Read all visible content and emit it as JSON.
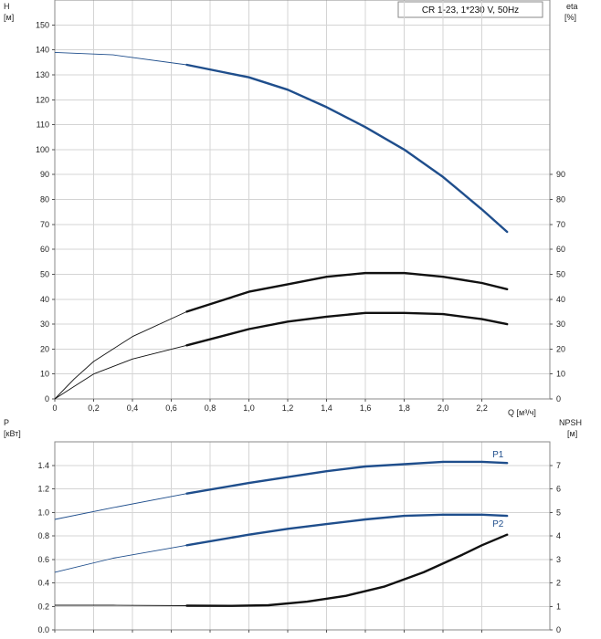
{
  "title": "CR 1-23, 1*230 V, 50Hz",
  "colors": {
    "blue": "#1f4e8c",
    "black": "#111111",
    "grid": "#d4d4d4"
  },
  "top_axes": {
    "left_label_line1": "H",
    "left_label_line2": "[м]",
    "right_label_line1": "eta",
    "right_label_line2": "[%]",
    "x_label": "Q [м³/ч]"
  },
  "bottom_axes": {
    "left_label_line1": "P",
    "left_label_line2": "[кВт]",
    "right_label_line1": "NPSH",
    "right_label_line2": "[м]"
  },
  "chart_data": [
    {
      "type": "line",
      "panel": "top",
      "xlabel": "Q [м³/ч]",
      "ylabel": "H [м]",
      "y2label": "eta [%]",
      "xlim": [
        0,
        2.55
      ],
      "ylim": [
        0,
        160
      ],
      "y2lim": [
        0,
        160
      ],
      "x_ticks": [
        "0",
        "0,2",
        "0,4",
        "0,6",
        "0,8",
        "1,0",
        "1,2",
        "1,4",
        "1,6",
        "1,8",
        "2,0",
        "2,2"
      ],
      "y_ticks": [
        "0",
        "10",
        "20",
        "30",
        "40",
        "50",
        "60",
        "70",
        "80",
        "90",
        "100",
        "110",
        "120",
        "130",
        "140",
        "150"
      ],
      "y2_ticks": [
        "0",
        "10",
        "20",
        "30",
        "40",
        "50",
        "60",
        "70",
        "80",
        "90"
      ],
      "grid": true,
      "series": [
        {
          "color": "#1f4e8c",
          "points": [
            [
              0,
              139
            ],
            [
              0.3,
              138
            ],
            [
              0.68,
              134
            ],
            [
              1.0,
              129
            ],
            [
              1.2,
              124
            ],
            [
              1.4,
              117
            ],
            [
              1.6,
              109
            ],
            [
              1.8,
              100
            ],
            [
              2.0,
              89
            ],
            [
              2.2,
              76
            ],
            [
              2.33,
              67
            ]
          ]
        },
        {
          "color": "#111111",
          "points": [
            [
              0,
              0
            ],
            [
              0.1,
              8
            ],
            [
              0.2,
              15
            ],
            [
              0.4,
              25
            ],
            [
              0.68,
              35
            ],
            [
              1.0,
              43
            ],
            [
              1.2,
              46
            ],
            [
              1.4,
              49
            ],
            [
              1.6,
              50.5
            ],
            [
              1.8,
              50.5
            ],
            [
              2.0,
              49
            ],
            [
              2.2,
              46.5
            ],
            [
              2.33,
              44
            ]
          ]
        },
        {
          "color": "#111111",
          "points": [
            [
              0,
              0
            ],
            [
              0.1,
              5
            ],
            [
              0.2,
              10
            ],
            [
              0.4,
              16
            ],
            [
              0.68,
              21.5
            ],
            [
              1.0,
              28
            ],
            [
              1.2,
              31
            ],
            [
              1.4,
              33
            ],
            [
              1.6,
              34.5
            ],
            [
              1.8,
              34.5
            ],
            [
              2.0,
              34
            ],
            [
              2.2,
              32
            ],
            [
              2.33,
              30
            ]
          ]
        }
      ]
    },
    {
      "type": "line",
      "panel": "bottom",
      "ylabel": "P [кВт]",
      "y2label": "NPSH [м]",
      "xlim": [
        0,
        2.55
      ],
      "ylim": [
        0,
        1.6
      ],
      "y2lim": [
        0,
        8
      ],
      "y_ticks": [
        "0.0",
        "0.2",
        "0.4",
        "0.6",
        "0.8",
        "1.0",
        "1.2",
        "1.4"
      ],
      "y2_ticks": [
        "0",
        "1",
        "2",
        "3",
        "4",
        "5",
        "6",
        "7"
      ],
      "grid": true,
      "series": [
        {
          "name": "P1",
          "color": "#1f4e8c",
          "points": [
            [
              0,
              0.94
            ],
            [
              0.3,
              1.04
            ],
            [
              0.68,
              1.16
            ],
            [
              1.0,
              1.25
            ],
            [
              1.2,
              1.3
            ],
            [
              1.4,
              1.35
            ],
            [
              1.6,
              1.39
            ],
            [
              1.8,
              1.41
            ],
            [
              2.0,
              1.43
            ],
            [
              2.2,
              1.43
            ],
            [
              2.33,
              1.42
            ]
          ]
        },
        {
          "name": "P2",
          "color": "#1f4e8c",
          "points": [
            [
              0,
              0.49
            ],
            [
              0.3,
              0.61
            ],
            [
              0.68,
              0.72
            ],
            [
              1.0,
              0.81
            ],
            [
              1.2,
              0.86
            ],
            [
              1.4,
              0.9
            ],
            [
              1.6,
              0.94
            ],
            [
              1.8,
              0.97
            ],
            [
              2.0,
              0.98
            ],
            [
              2.2,
              0.98
            ],
            [
              2.33,
              0.97
            ]
          ]
        },
        {
          "color": "#111111",
          "axis": "y2",
          "points": [
            [
              0,
              1.05
            ],
            [
              0.3,
              1.05
            ],
            [
              0.68,
              1.03
            ],
            [
              0.9,
              1.02
            ],
            [
              1.1,
              1.05
            ],
            [
              1.3,
              1.2
            ],
            [
              1.5,
              1.45
            ],
            [
              1.7,
              1.85
            ],
            [
              1.9,
              2.45
            ],
            [
              2.1,
              3.2
            ],
            [
              2.2,
              3.6
            ],
            [
              2.33,
              4.05
            ]
          ]
        }
      ]
    }
  ]
}
